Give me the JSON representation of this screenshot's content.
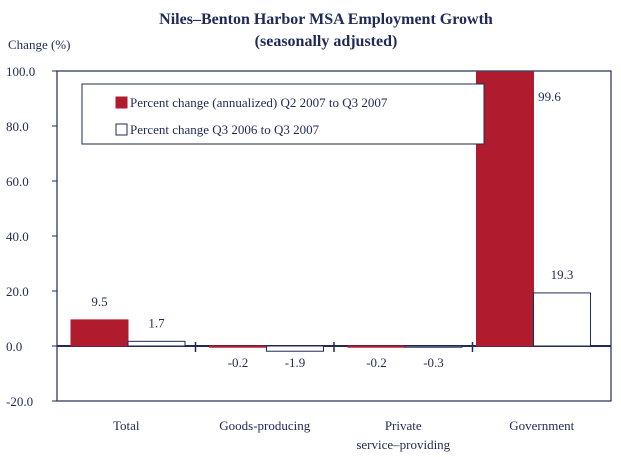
{
  "chart_data": {
    "type": "bar",
    "title": "Niles–Benton Harbor MSA Employment Growth",
    "subtitle": "(seasonally adjusted)",
    "ylabel": "Change (%)",
    "xlabel": "",
    "ylim": [
      -20,
      100
    ],
    "yticks": [
      "100.0",
      "80.0",
      "60.0",
      "40.0",
      "20.0",
      "0.0",
      "-20.0"
    ],
    "ytick_values": [
      100,
      80,
      60,
      40,
      20,
      0,
      -20
    ],
    "categories": [
      "Total",
      "Goods-producing",
      "Private\nservice–providing",
      "Government"
    ],
    "series": [
      {
        "name": "Percent change (annualized) Q2 2007 to Q3 2007",
        "color": "#b01c2e",
        "fill": "#b01c2e",
        "values": [
          9.5,
          -0.2,
          -0.2,
          99.6
        ],
        "labels": [
          "9.5",
          "-0.2",
          "-0.2",
          "99.6"
        ]
      },
      {
        "name": "Percent change Q3 2006 to Q3 2007",
        "color": "#1f2a55",
        "fill": "#ffffff",
        "values": [
          1.7,
          -1.9,
          -0.3,
          19.3
        ],
        "labels": [
          "1.7",
          "-1.9",
          "-0.3",
          "19.3"
        ]
      }
    ],
    "legend_position": "top-left",
    "grid": false
  }
}
